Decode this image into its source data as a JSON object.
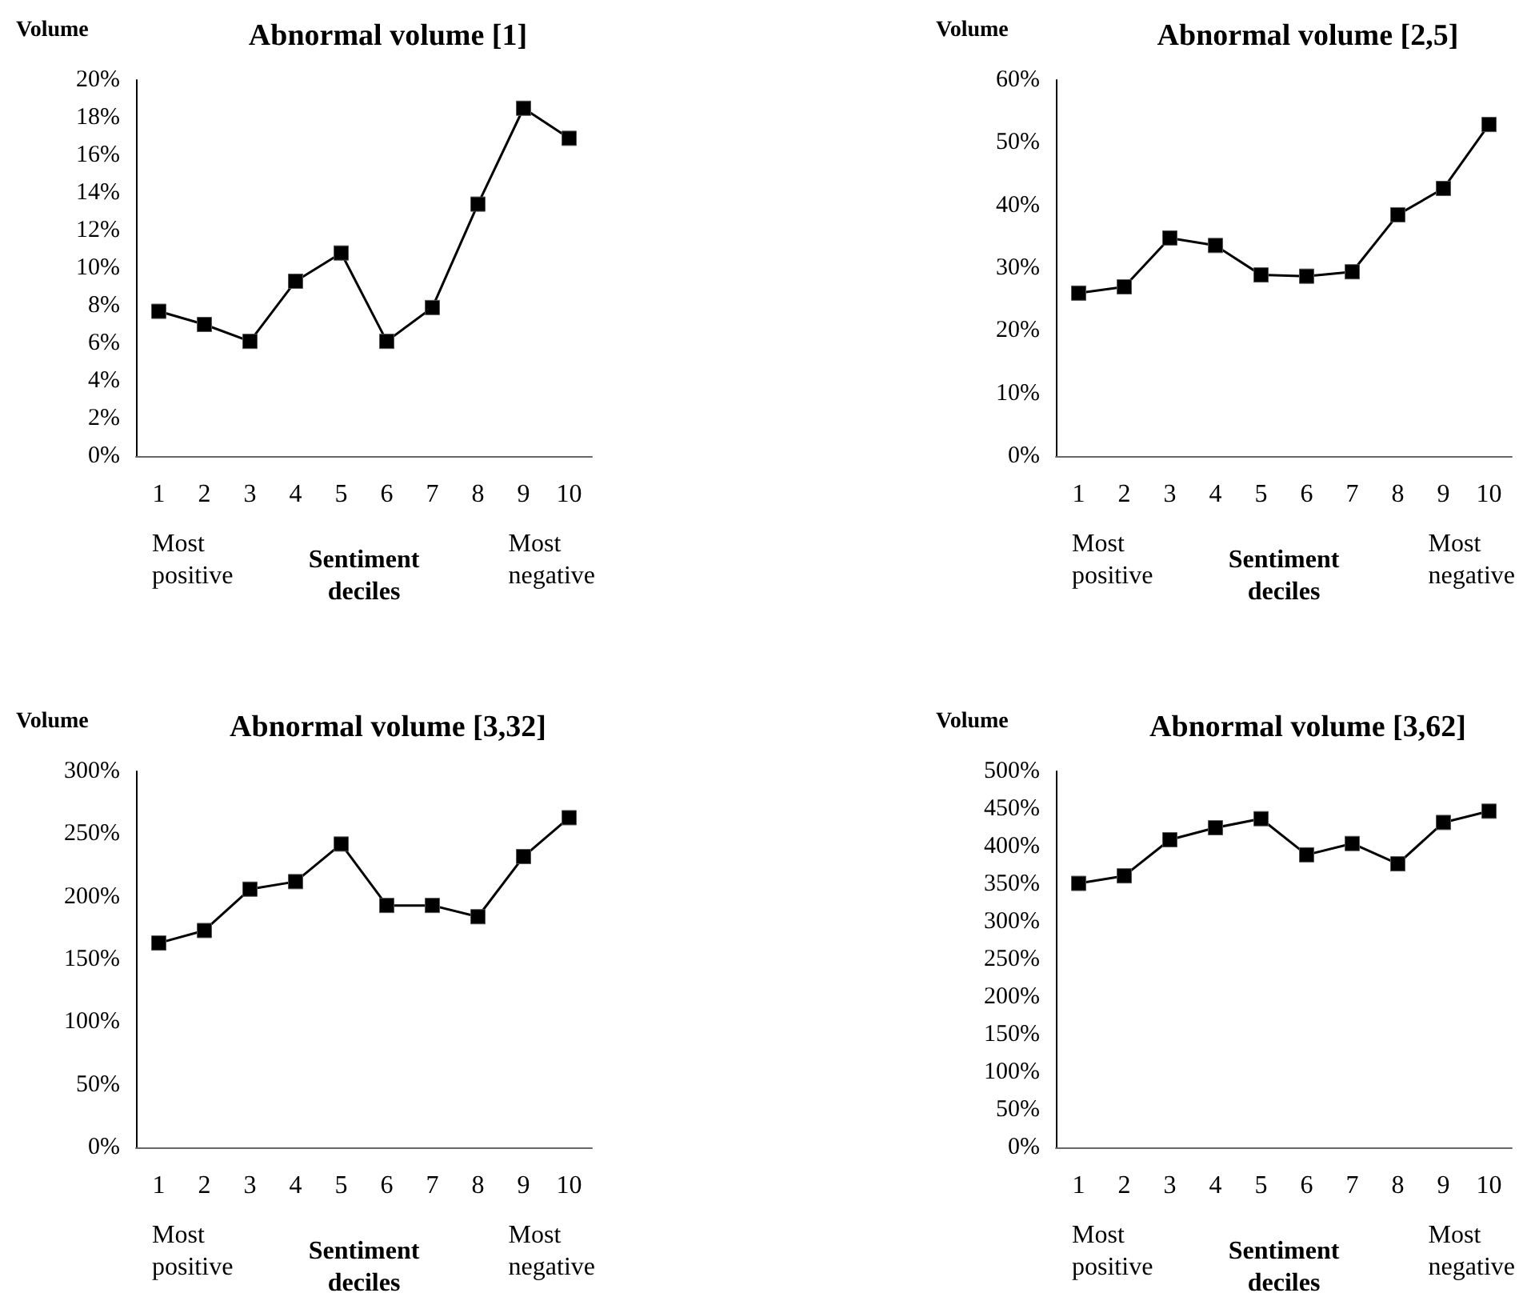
{
  "chart_data": [
    {
      "type": "line",
      "title": "Abnormal volume [1]",
      "ylabel": "Volume",
      "xlabel": "Sentiment deciles",
      "annotations": [
        "Most positive",
        "Most negative"
      ],
      "categories": [
        "1",
        "2",
        "3",
        "4",
        "5",
        "6",
        "7",
        "8",
        "9",
        "10"
      ],
      "series": [
        {
          "color": "#000000",
          "values": [
            7.7,
            7.0,
            6.1,
            9.3,
            10.8,
            6.1,
            7.9,
            13.4,
            18.5,
            16.9
          ]
        }
      ],
      "ylim": [
        0,
        20
      ],
      "yticks": [
        {
          "value": 0,
          "label": "0%"
        },
        {
          "value": 2,
          "label": "2%"
        },
        {
          "value": 4,
          "label": "4%"
        },
        {
          "value": 6,
          "label": "6%"
        },
        {
          "value": 8,
          "label": "8%"
        },
        {
          "value": 10,
          "label": "10%"
        },
        {
          "value": 12,
          "label": "12%"
        },
        {
          "value": 14,
          "label": "14%"
        },
        {
          "value": 16,
          "label": "16%"
        },
        {
          "value": 18,
          "label": "18%"
        },
        {
          "value": 20,
          "label": "20%"
        }
      ],
      "grid": false,
      "marker": "square",
      "line_style": "solid"
    },
    {
      "type": "line",
      "title": "Abnormal volume [2,5]",
      "ylabel": "Volume",
      "xlabel": "Sentiment deciles",
      "annotations": [
        "Most positive",
        "Most negative"
      ],
      "categories": [
        "1",
        "2",
        "3",
        "4",
        "5",
        "6",
        "7",
        "8",
        "9",
        "10"
      ],
      "series": [
        {
          "color": "#000000",
          "values": [
            26.0,
            27.0,
            34.8,
            33.6,
            28.9,
            28.7,
            29.4,
            38.5,
            42.7,
            52.9
          ]
        }
      ],
      "ylim": [
        0,
        60
      ],
      "yticks": [
        {
          "value": 0,
          "label": "0%"
        },
        {
          "value": 10,
          "label": "10%"
        },
        {
          "value": 20,
          "label": "20%"
        },
        {
          "value": 30,
          "label": "30%"
        },
        {
          "value": 40,
          "label": "40%"
        },
        {
          "value": 50,
          "label": "50%"
        },
        {
          "value": 60,
          "label": "60%"
        }
      ],
      "grid": false,
      "marker": "square",
      "line_style": "solid"
    },
    {
      "type": "line",
      "title": "Abnormal volume [3,32]",
      "ylabel": "Volume",
      "xlabel": "Sentiment deciles",
      "annotations": [
        "Most positive",
        "Most negative"
      ],
      "categories": [
        "1",
        "2",
        "3",
        "4",
        "5",
        "6",
        "7",
        "8",
        "9",
        "10"
      ],
      "series": [
        {
          "color": "#000000",
          "values": [
            163,
            173,
            206,
            212,
            242,
            193,
            193,
            184,
            232,
            263
          ]
        }
      ],
      "ylim": [
        0,
        300
      ],
      "yticks": [
        {
          "value": 0,
          "label": "0%"
        },
        {
          "value": 50,
          "label": "50%"
        },
        {
          "value": 100,
          "label": "100%"
        },
        {
          "value": 150,
          "label": "150%"
        },
        {
          "value": 200,
          "label": "200%"
        },
        {
          "value": 250,
          "label": "250%"
        },
        {
          "value": 300,
          "label": "300%"
        }
      ],
      "grid": false,
      "marker": "square",
      "line_style": "solid"
    },
    {
      "type": "line",
      "title": "Abnormal volume [3,62]",
      "ylabel": "Volume",
      "xlabel": "Sentiment deciles",
      "annotations": [
        "Most positive",
        "Most negative"
      ],
      "categories": [
        "1",
        "2",
        "3",
        "4",
        "5",
        "6",
        "7",
        "8",
        "9",
        "10"
      ],
      "series": [
        {
          "color": "#000000",
          "values": [
            351,
            361,
            409,
            425,
            437,
            389,
            404,
            377,
            432,
            447
          ]
        }
      ],
      "ylim": [
        0,
        500
      ],
      "yticks": [
        {
          "value": 0,
          "label": "0%"
        },
        {
          "value": 50,
          "label": "50%"
        },
        {
          "value": 100,
          "label": "100%"
        },
        {
          "value": 150,
          "label": "150%"
        },
        {
          "value": 200,
          "label": "200%"
        },
        {
          "value": 250,
          "label": "250%"
        },
        {
          "value": 300,
          "label": "300%"
        },
        {
          "value": 350,
          "label": "350%"
        },
        {
          "value": 400,
          "label": "400%"
        },
        {
          "value": 450,
          "label": "450%"
        },
        {
          "value": 500,
          "label": "500%"
        }
      ],
      "grid": false,
      "marker": "square",
      "line_style": "solid"
    }
  ]
}
